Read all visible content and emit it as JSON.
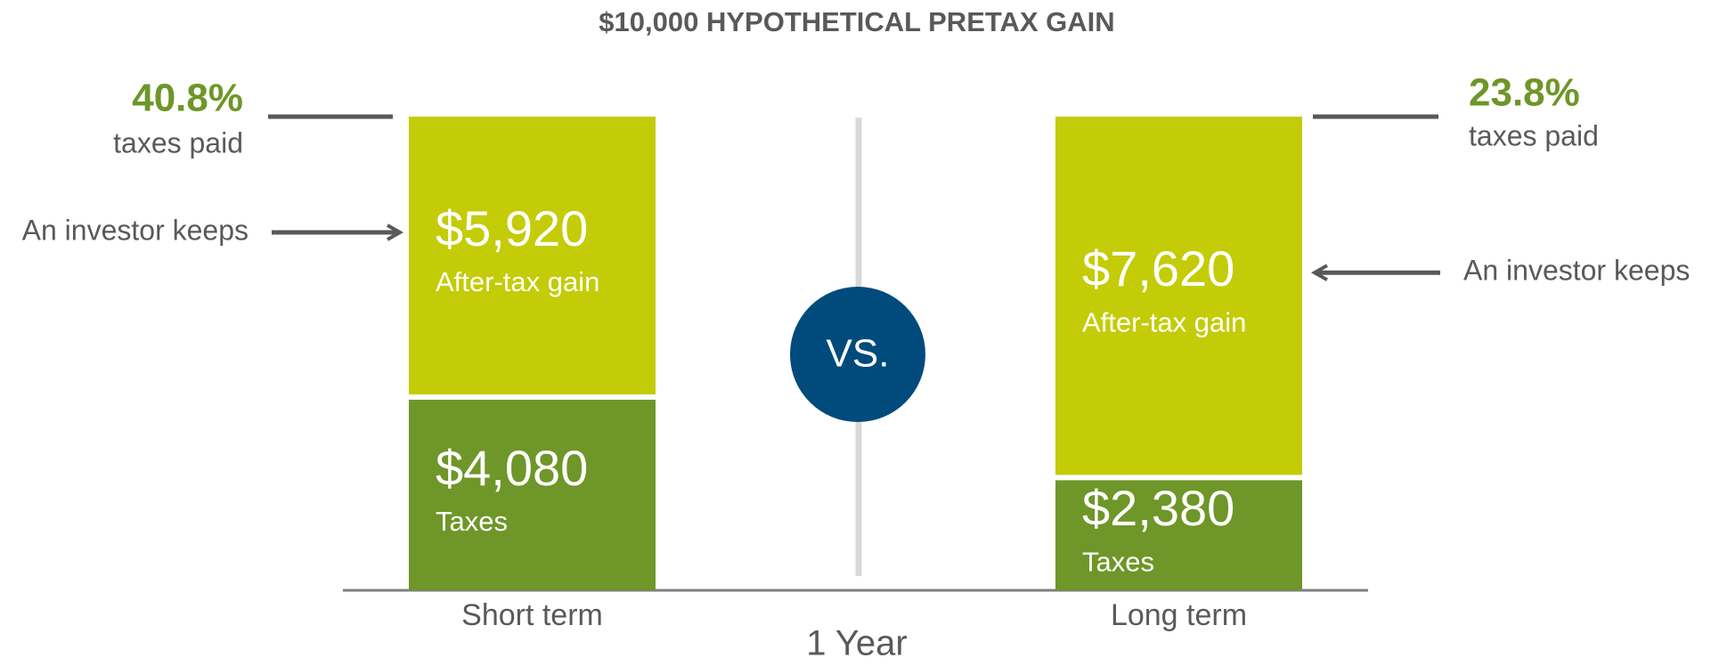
{
  "chart_data": {
    "type": "stacked_bar",
    "title": "$10,000 HYPOTHETICAL PRETAX GAIN",
    "categories": [
      "Short term",
      "Long term"
    ],
    "series": [
      {
        "name": "Taxes",
        "color": "#6e9628",
        "values": [
          4080,
          2380
        ],
        "value_labels": [
          "$4,080",
          "$2,380"
        ]
      },
      {
        "name": "After-tax gain",
        "color": "#c3cc06",
        "values": [
          5920,
          7620
        ],
        "value_labels": [
          "$5,920",
          "$7,620"
        ]
      }
    ],
    "ylim": [
      0,
      10000
    ],
    "x_label": "1 Year",
    "center_label": "VS.",
    "keeps_label": "An investor keeps",
    "tax_rates": [
      40.8,
      23.8
    ],
    "tax_rate_labels": [
      "40.8%",
      "23.8%"
    ],
    "taxes_paid_label": "taxes paid"
  }
}
